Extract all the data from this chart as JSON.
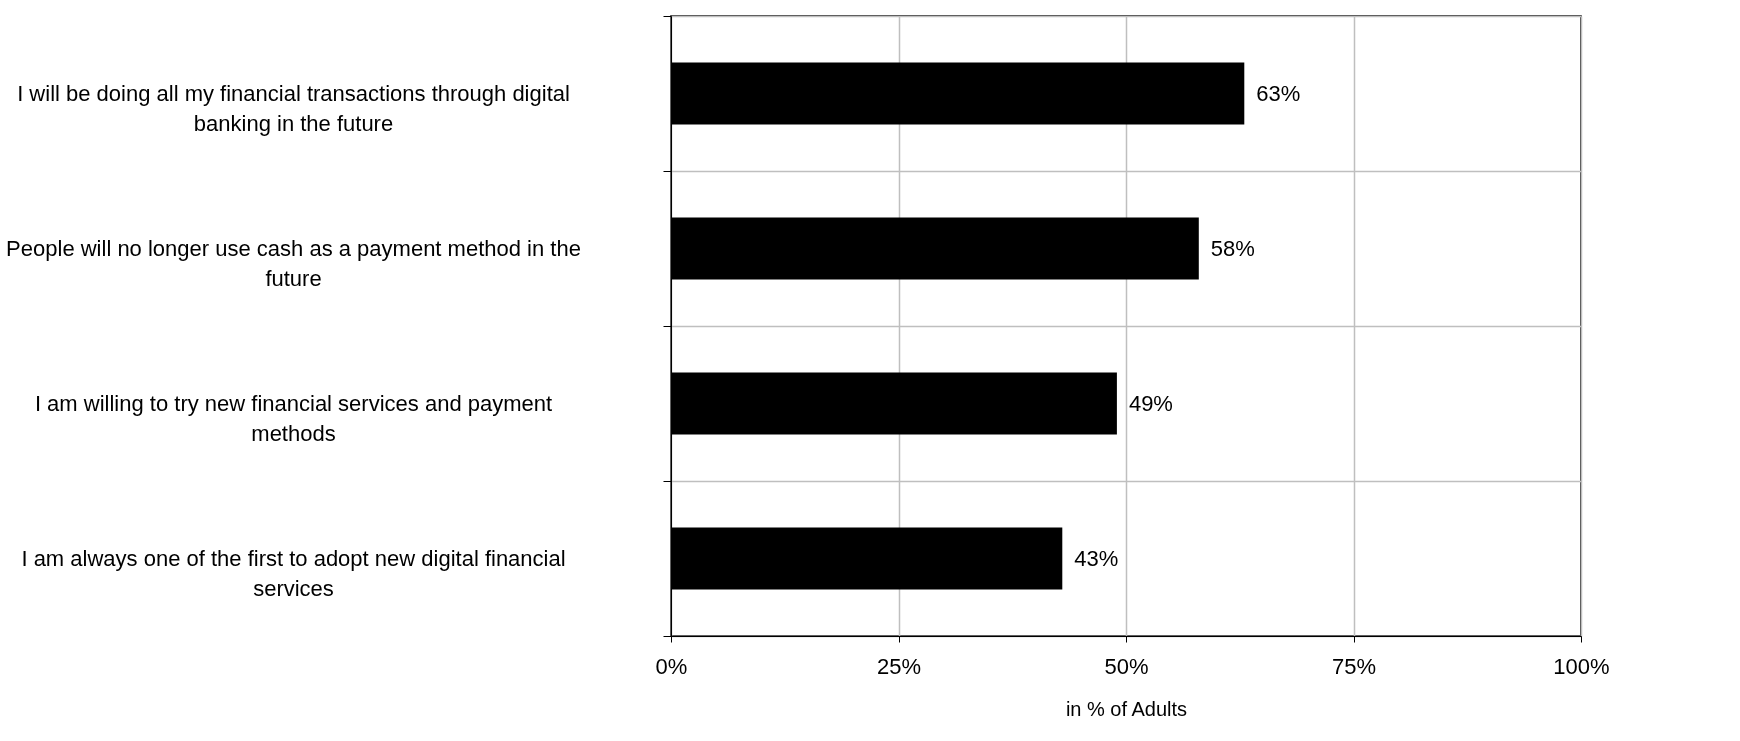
{
  "chart_data": {
    "type": "bar",
    "orientation": "horizontal",
    "categories": [
      "I will be doing all my financial transactions through digital banking in the future",
      "People will no longer use cash as a payment method in the future",
      "I am willing to try new financial services and payment methods",
      "I am always one of the first to adopt new digital financial services"
    ],
    "values": [
      63,
      58,
      49,
      43
    ],
    "color": "#000000",
    "value_labels": [
      "63%",
      "58%",
      "49%",
      "43%"
    ],
    "xlim": [
      0,
      100
    ],
    "xticks": [
      {
        "value": 0,
        "label": "0%"
      },
      {
        "value": 25,
        "label": "25%"
      },
      {
        "value": 50,
        "label": "50%"
      },
      {
        "value": 75,
        "label": "75%"
      },
      {
        "value": 100,
        "label": "100%"
      }
    ],
    "xlabel": "in % of Adults",
    "grid": true
  }
}
